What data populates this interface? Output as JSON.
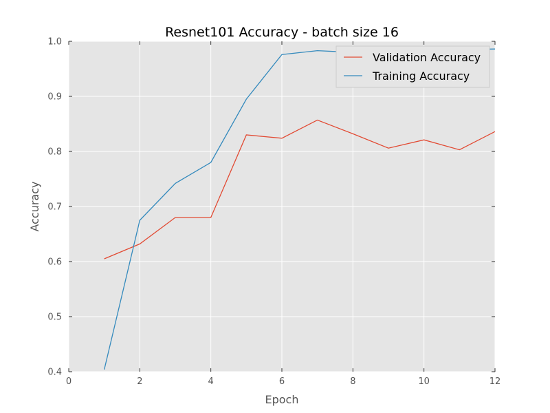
{
  "chart_data": {
    "type": "line",
    "title": "Resnet101 Accuracy - batch size 16",
    "xlabel": "Epoch",
    "ylabel": "Accuracy",
    "xlim": [
      0,
      12
    ],
    "ylim": [
      0.4,
      1.0
    ],
    "xticks": [
      0,
      2,
      4,
      6,
      8,
      10,
      12
    ],
    "yticks": [
      0.4,
      0.5,
      0.6,
      0.7,
      0.8,
      0.9,
      1.0
    ],
    "grid": true,
    "legend_position": "top-right",
    "series": [
      {
        "name": "Validation Accuracy",
        "color": "#e24a33",
        "x": [
          1,
          2,
          3,
          4,
          5,
          6,
          7,
          8,
          9,
          10,
          11,
          12
        ],
        "y": [
          0.605,
          0.632,
          0.68,
          0.68,
          0.83,
          0.824,
          0.857,
          0.832,
          0.806,
          0.821,
          0.803,
          0.836
        ]
      },
      {
        "name": "Training Accuracy",
        "color": "#348abd",
        "x": [
          1,
          2,
          3,
          4,
          5,
          6,
          7,
          8,
          9,
          10,
          11,
          12
        ],
        "y": [
          0.404,
          0.675,
          0.742,
          0.78,
          0.895,
          0.976,
          0.983,
          0.98,
          0.982,
          0.984,
          0.985,
          0.986
        ]
      }
    ]
  }
}
